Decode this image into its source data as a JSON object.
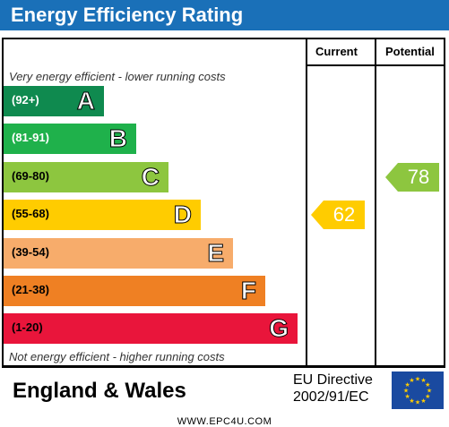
{
  "header": {
    "title": "Energy Efficiency Rating"
  },
  "columns": {
    "current": "Current",
    "potential": "Potential"
  },
  "notes": {
    "top": "Very energy efficient - lower running costs",
    "bottom": "Not energy efficient - higher running costs"
  },
  "chart_data": {
    "type": "bar",
    "title": "Energy Efficiency Rating",
    "bands": [
      {
        "range": "(92+)",
        "letter": "A",
        "color": "#0f8a4f",
        "text_color": "#ffffff"
      },
      {
        "range": "(81-91)",
        "letter": "B",
        "color": "#1fb14b",
        "text_color": "#ffffff"
      },
      {
        "range": "(69-80)",
        "letter": "C",
        "color": "#8dc63f",
        "text_color": "#000000"
      },
      {
        "range": "(55-68)",
        "letter": "D",
        "color": "#ffcc00",
        "text_color": "#000000"
      },
      {
        "range": "(39-54)",
        "letter": "E",
        "color": "#f7ac6b",
        "text_color": "#000000"
      },
      {
        "range": "(21-38)",
        "letter": "F",
        "color": "#ef8023",
        "text_color": "#000000"
      },
      {
        "range": "(1-20)",
        "letter": "G",
        "color": "#e9153b",
        "text_color": "#000000"
      }
    ],
    "current": {
      "value": 62,
      "band": "D",
      "color": "#ffcc00"
    },
    "potential": {
      "value": 78,
      "band": "C",
      "color": "#8dc63f"
    }
  },
  "footer": {
    "country": "England & Wales",
    "directive_line1": "EU Directive",
    "directive_line2": "2002/91/EC",
    "flag_icon": "eu-flag-icon"
  },
  "watermark": "WWW.EPC4U.COM"
}
